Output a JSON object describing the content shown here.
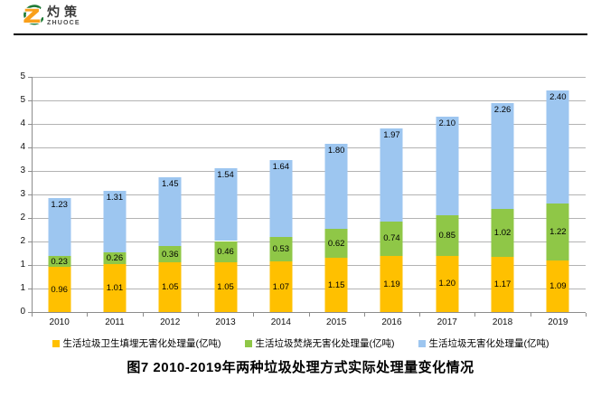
{
  "header": {
    "logo_zh": "灼策",
    "logo_en": "ZHUOCE"
  },
  "colors": {
    "landfill": "#FFC000",
    "incineration": "#8FC747",
    "harmless": "#9DC6F0",
    "gridline": "#B3B3B3",
    "axis": "#8C8C8C"
  },
  "chart_data": {
    "type": "bar",
    "stacked": true,
    "categories": [
      "2010",
      "2011",
      "2012",
      "2013",
      "2014",
      "2015",
      "2016",
      "2017",
      "2018",
      "2019"
    ],
    "series": [
      {
        "name": "生活垃圾卫生填埋无害化处理量(亿吨)",
        "color": "#FFC000",
        "label_position": "center",
        "values": [
          0.96,
          1.01,
          1.05,
          1.05,
          1.07,
          1.15,
          1.19,
          1.2,
          1.17,
          1.09
        ]
      },
      {
        "name": "生活垃圾焚烧无害化处理量(亿吨)",
        "color": "#8FC747",
        "label_position": "center",
        "values": [
          0.23,
          0.26,
          0.36,
          0.46,
          0.53,
          0.62,
          0.74,
          0.85,
          1.02,
          1.22
        ]
      },
      {
        "name": "生活垃圾无害化处理量(亿吨)",
        "color": "#9DC6F0",
        "label_position": "inside-top",
        "values": [
          1.23,
          1.31,
          1.45,
          1.54,
          1.64,
          1.8,
          1.97,
          2.1,
          2.26,
          2.4
        ]
      }
    ],
    "ylim": [
      0,
      5
    ],
    "ytick_step": 0.5,
    "ytick_labels_top_to_bottom": [
      "5",
      "5",
      "4",
      "4",
      "3",
      "3",
      "2",
      "2",
      "1",
      "1",
      "0"
    ],
    "grid": true,
    "legend_position": "bottom",
    "value_label_format": "0.00"
  },
  "title": "图7  2010-2019年两种垃圾处理方式实际处理量变化情况"
}
